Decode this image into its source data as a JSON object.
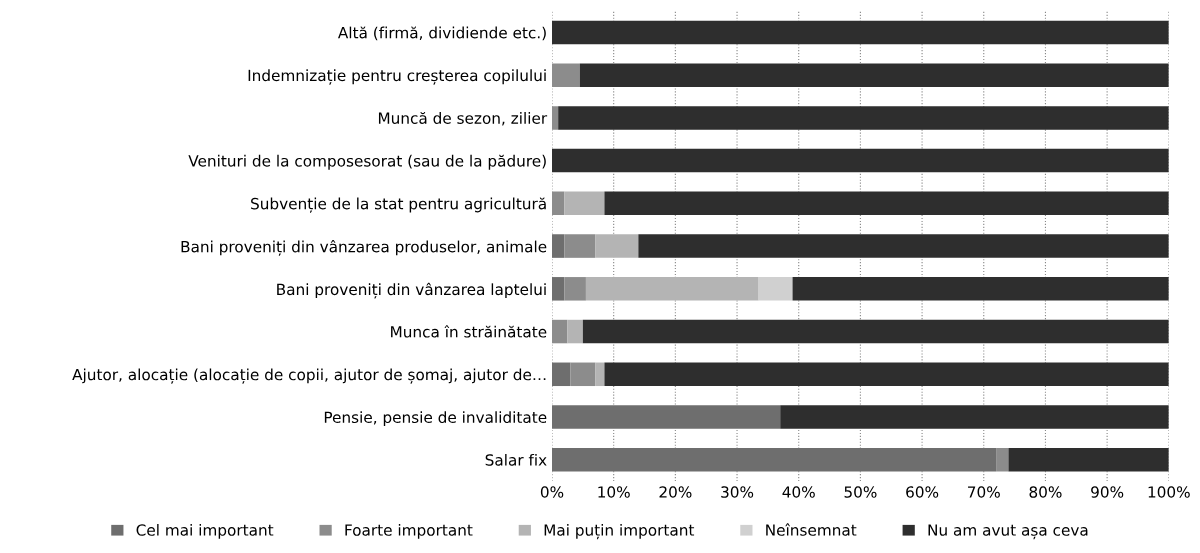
{
  "chart_data": {
    "type": "bar",
    "orientation": "horizontal",
    "stacked": true,
    "categories": [
      "Altă (firmă, dividiende etc.)",
      "Indemnizație pentru creșterea copilului",
      "Muncă de sezon, zilier",
      "Venituri de la composesorat (sau de la pădure)",
      "Subvenție de la stat pentru agricultură",
      "Bani proveniți din vânzarea produselor, animale",
      "Bani proveniți din vânzarea laptelui",
      "Munca în străinătate",
      "Ajutor, alocație (alocație de copii, ajutor de șomaj, ajutor de…",
      "Pensie, pensie de invaliditate",
      "Salar fix"
    ],
    "series": [
      {
        "name": "Cel mai important",
        "color": "#6e6e6e",
        "values": [
          0,
          0,
          0,
          0,
          0,
          2,
          2,
          0,
          3,
          37,
          72
        ]
      },
      {
        "name": "Foarte important",
        "color": "#8c8c8c",
        "values": [
          0,
          4.5,
          1,
          0,
          2,
          5,
          3.5,
          2.5,
          4,
          0,
          2
        ]
      },
      {
        "name": "Mai puțin important",
        "color": "#b4b4b4",
        "values": [
          0,
          0,
          0,
          0,
          6.5,
          7,
          28,
          2.5,
          1.5,
          0,
          0
        ]
      },
      {
        "name": "Neînsemnat",
        "color": "#d0d0d0",
        "values": [
          0,
          0,
          0,
          0,
          0,
          0,
          5.5,
          0,
          0,
          0,
          0
        ]
      },
      {
        "name": "Nu am avut așa ceva",
        "color": "#2e2e2e",
        "values": [
          100,
          95.5,
          99,
          100,
          91.5,
          86,
          61,
          95,
          91.5,
          63,
          26
        ]
      }
    ],
    "xlim": [
      0,
      100
    ],
    "xticks": [
      {
        "value": 0,
        "label": "0%"
      },
      {
        "value": 10,
        "label": "10%"
      },
      {
        "value": 20,
        "label": "20%"
      },
      {
        "value": 30,
        "label": "30%"
      },
      {
        "value": 40,
        "label": "40%"
      },
      {
        "value": 50,
        "label": "50%"
      },
      {
        "value": 60,
        "label": "60%"
      },
      {
        "value": 70,
        "label": "70%"
      },
      {
        "value": 80,
        "label": "80%"
      },
      {
        "value": 90,
        "label": "90%"
      },
      {
        "value": 100,
        "label": "100%"
      }
    ],
    "grid": "x",
    "legend": "bottom"
  }
}
